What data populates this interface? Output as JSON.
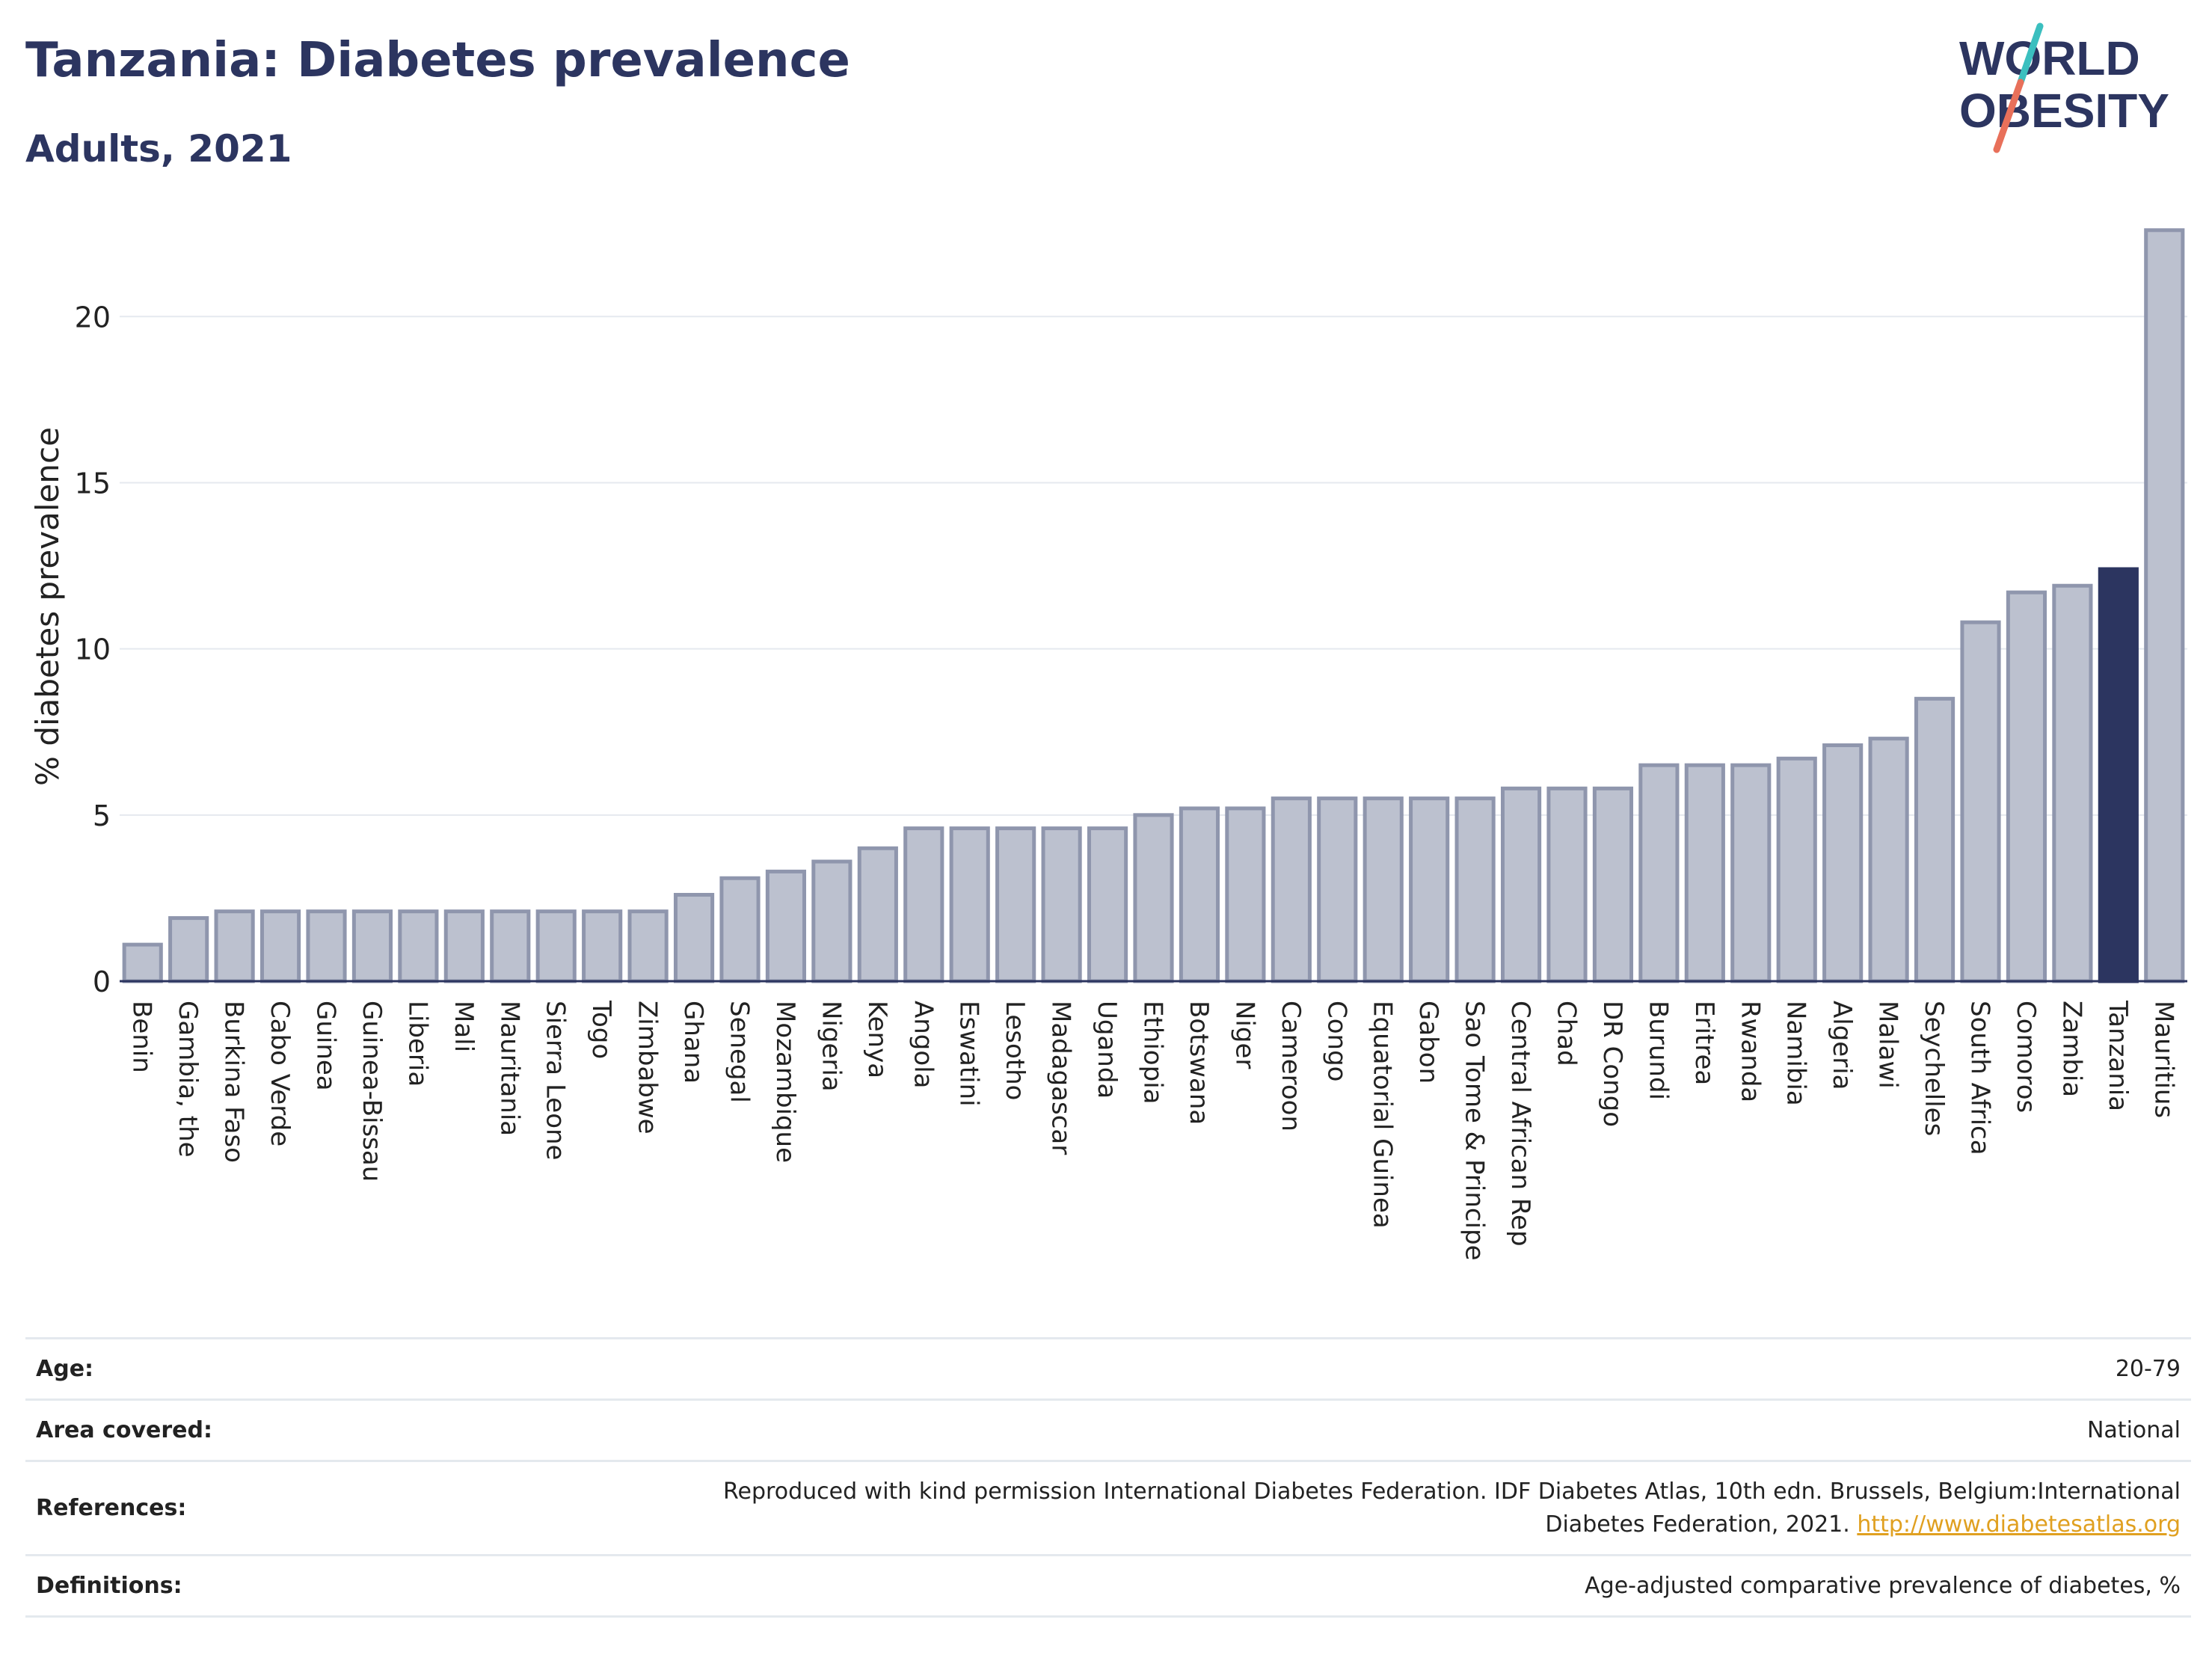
{
  "header": {
    "title": "Tanzania: Diabetes prevalence",
    "subtitle": "Adults, 2021"
  },
  "logo": {
    "line1": "WORLD",
    "line2": "OBESITY"
  },
  "colors": {
    "highlight_bar": "#2c3560",
    "bar_fill": "#bcc1cf",
    "bar_stroke": "#8f96ad",
    "title": "#2c3560",
    "grid": "#e5e9ef",
    "link": "#e0a020",
    "logo_text": "#2c3560",
    "logo_slash_top": "#3bbfbf",
    "logo_slash_bottom": "#e8705a"
  },
  "chart_data": {
    "type": "bar",
    "ylabel": "% diabetes prevalence",
    "yticks": [
      0,
      5,
      10,
      15,
      20
    ],
    "ylim": [
      0,
      23
    ],
    "highlight": "Tanzania",
    "grid": true,
    "categories": [
      "Benin",
      "Gambia, the",
      "Burkina Faso",
      "Cabo Verde",
      "Guinea",
      "Guinea-Bissau",
      "Liberia",
      "Mali",
      "Mauritania",
      "Sierra Leone",
      "Togo",
      "Zimbabwe",
      "Ghana",
      "Senegal",
      "Mozambique",
      "Nigeria",
      "Kenya",
      "Angola",
      "Eswatini",
      "Lesotho",
      "Madagascar",
      "Uganda",
      "Ethiopia",
      "Botswana",
      "Niger",
      "Cameroon",
      "Congo",
      "Equatorial Guinea",
      "Gabon",
      "Sao Tome & Principe",
      "Central African Rep",
      "Chad",
      "DR Congo",
      "Burundi",
      "Eritrea",
      "Rwanda",
      "Namibia",
      "Algeria",
      "Malawi",
      "Seychelles",
      "South Africa",
      "Comoros",
      "Zambia",
      "Tanzania",
      "Mauritius"
    ],
    "values": [
      1.1,
      1.9,
      2.1,
      2.1,
      2.1,
      2.1,
      2.1,
      2.1,
      2.1,
      2.1,
      2.1,
      2.1,
      2.6,
      3.1,
      3.3,
      3.6,
      4.0,
      4.6,
      4.6,
      4.6,
      4.6,
      4.6,
      5.0,
      5.2,
      5.2,
      5.5,
      5.5,
      5.5,
      5.5,
      5.5,
      5.8,
      5.8,
      5.8,
      6.5,
      6.5,
      6.5,
      6.7,
      7.1,
      7.3,
      8.5,
      10.8,
      11.7,
      11.9,
      12.4,
      22.6
    ]
  },
  "info": {
    "age_label": "Age:",
    "age_value": "20-79",
    "area_label": "Area covered:",
    "area_value": "National",
    "references_label": "References:",
    "references_line1": "Reproduced with kind permission International Diabetes Federation.  IDF Diabetes Atlas, 10th edn. Brussels, Belgium:International",
    "references_line2": "Diabetes Federation, 2021.",
    "references_link": "http://www.diabetesatlas.org",
    "definitions_label": "Definitions:",
    "definitions_value": "Age-adjusted comparative prevalence of diabetes, %"
  }
}
